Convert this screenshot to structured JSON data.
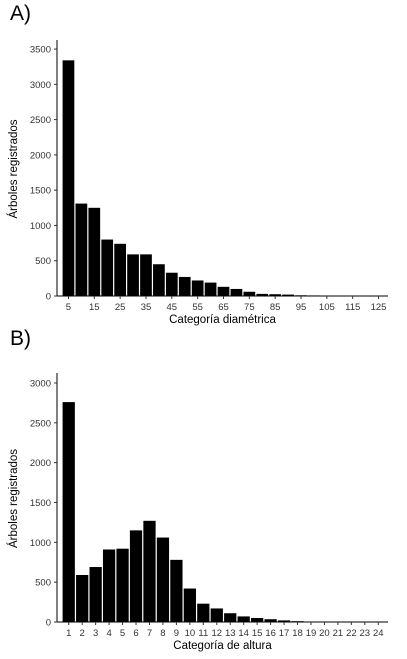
{
  "panels": [
    {
      "label": "A)"
    },
    {
      "label": "B)"
    }
  ],
  "chart_data": [
    {
      "type": "bar",
      "panel": "A)",
      "xlabel": "Categoría diamétrica",
      "ylabel": "Árboles registrados",
      "ylim": [
        0,
        3600
      ],
      "yticks": [
        0,
        500,
        1000,
        1500,
        2000,
        2500,
        3000,
        3500
      ],
      "categories": [
        "5",
        "10",
        "15",
        "20",
        "25",
        "30",
        "35",
        "40",
        "45",
        "50",
        "55",
        "60",
        "65",
        "70",
        "75",
        "80",
        "85",
        "90",
        "95",
        "100",
        "105",
        "110",
        "115",
        "120",
        "125"
      ],
      "tick_labels": [
        "5",
        "15",
        "25",
        "35",
        "45",
        "55",
        "65",
        "75",
        "85",
        "95",
        "105",
        "115",
        "125"
      ],
      "values": [
        3340,
        1310,
        1250,
        800,
        740,
        590,
        590,
        450,
        330,
        270,
        220,
        190,
        130,
        100,
        60,
        30,
        25,
        20,
        10,
        8,
        5,
        3,
        2,
        2,
        2
      ],
      "grid": false,
      "bar_color": "#000000"
    },
    {
      "type": "bar",
      "panel": "B)",
      "xlabel": "Categoría de altura",
      "ylabel": "Árboles registrados",
      "ylim": [
        0,
        3100
      ],
      "yticks": [
        0,
        500,
        1000,
        1500,
        2000,
        2500,
        3000
      ],
      "categories": [
        "1",
        "2",
        "3",
        "4",
        "5",
        "6",
        "7",
        "8",
        "9",
        "10",
        "11",
        "12",
        "13",
        "14",
        "15",
        "16",
        "17",
        "18",
        "19",
        "20",
        "21",
        "22",
        "23",
        "24"
      ],
      "tick_labels": [
        "1",
        "2",
        "3",
        "4",
        "5",
        "6",
        "7",
        "8",
        "9",
        "10",
        "11",
        "12",
        "13",
        "14",
        "15",
        "16",
        "17",
        "18",
        "19",
        "20",
        "21",
        "22",
        "23",
        "24"
      ],
      "values": [
        2760,
        590,
        690,
        910,
        920,
        1150,
        1270,
        1060,
        780,
        420,
        230,
        170,
        110,
        70,
        50,
        35,
        20,
        10,
        6,
        3,
        2,
        1,
        1,
        1
      ],
      "grid": false,
      "bar_color": "#000000"
    }
  ]
}
